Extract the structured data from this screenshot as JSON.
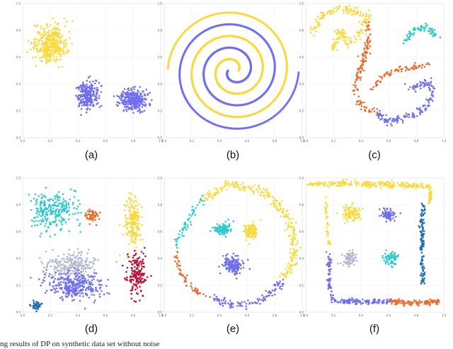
{
  "figure": {
    "caption": "ng results of DP on synthetic data set without noise",
    "colors": {
      "blue": "#6f6ff0",
      "yellow": "#f9d93a",
      "orange": "#ea6a2a",
      "teal": "#2fc9cf",
      "gray": "#b3b8cf",
      "red": "#b8143a",
      "darkblue": "#1f6eb4"
    }
  },
  "chart_data": [
    {
      "type": "scatter",
      "panel_label": "(a)",
      "xlim": [
        0,
        1
      ],
      "ylim": [
        0,
        1
      ],
      "grid": true,
      "x_ticks": [
        "0.0",
        "0.2",
        "0.4",
        "0.6",
        "0.8",
        "1.0"
      ],
      "y_ticks": [
        "0.0",
        "0.2",
        "0.4",
        "0.6",
        "0.8",
        "1.0"
      ],
      "series": [
        {
          "color_key": "yellow",
          "clusters": [
            {
              "shape": "blob",
              "cx": 0.2,
              "cy": 0.7,
              "rx": 0.12,
              "ry": 0.14,
              "n": 360
            }
          ]
        },
        {
          "color_key": "blue",
          "clusters": [
            {
              "shape": "blob",
              "cx": 0.47,
              "cy": 0.32,
              "rx": 0.08,
              "ry": 0.1,
              "n": 240
            },
            {
              "shape": "blob",
              "cx": 0.8,
              "cy": 0.28,
              "rx": 0.1,
              "ry": 0.08,
              "n": 300
            }
          ]
        }
      ]
    },
    {
      "type": "scatter",
      "panel_label": "(b)",
      "xlim": [
        0,
        1
      ],
      "ylim": [
        0,
        1
      ],
      "grid": true,
      "x_ticks": [
        "0.0",
        "0.2",
        "0.4",
        "0.6",
        "0.8",
        "1.0"
      ],
      "y_ticks": [
        "0.0",
        "0.2",
        "0.4",
        "0.6",
        "0.8",
        "1.0"
      ],
      "series": [
        {
          "color_key": "blue",
          "clusters": [
            {
              "shape": "spiral",
              "cx": 0.5,
              "cy": 0.5,
              "r0": 0.04,
              "r1": 0.5,
              "t0": 3.14,
              "t1": 18.85,
              "phase": 0,
              "n": 520
            }
          ]
        },
        {
          "color_key": "yellow",
          "clusters": [
            {
              "shape": "spiral",
              "cx": 0.5,
              "cy": 0.5,
              "r0": 0.04,
              "r1": 0.5,
              "t0": 3.14,
              "t1": 18.85,
              "phase": 3.14,
              "n": 520
            }
          ]
        }
      ]
    },
    {
      "type": "scatter",
      "panel_label": "(c)",
      "xlim": [
        0,
        1
      ],
      "ylim": [
        0,
        1
      ],
      "grid": true,
      "x_ticks": [
        "0.0",
        "0.2",
        "0.4",
        "0.6",
        "0.8",
        "1.0"
      ],
      "y_ticks": [
        "0.0",
        "0.2",
        "0.4",
        "0.6",
        "0.8",
        "1.0"
      ],
      "series": [
        {
          "color_key": "yellow",
          "clusters": [
            {
              "shape": "path",
              "pts": [
                [
                  0.05,
                  0.77
                ],
                [
                  0.12,
                  0.92
                ],
                [
                  0.22,
                  0.96
                ],
                [
                  0.35,
                  0.95
                ],
                [
                  0.45,
                  0.9
                ],
                [
                  0.4,
                  0.78
                ],
                [
                  0.3,
                  0.7
                ],
                [
                  0.25,
                  0.8
                ],
                [
                  0.2,
                  0.66
                ]
              ],
              "spread": 0.025,
              "n": 210
            }
          ]
        },
        {
          "color_key": "orange",
          "clusters": [
            {
              "shape": "path",
              "pts": [
                [
                  0.46,
                  0.85
                ],
                [
                  0.45,
                  0.7
                ],
                [
                  0.41,
                  0.55
                ],
                [
                  0.37,
                  0.45
                ],
                [
                  0.36,
                  0.32
                ],
                [
                  0.42,
                  0.22
                ],
                [
                  0.52,
                  0.2
                ]
              ],
              "spread": 0.02,
              "n": 130
            },
            {
              "shape": "path",
              "pts": [
                [
                  0.48,
                  0.35
                ],
                [
                  0.55,
                  0.45
                ],
                [
                  0.64,
                  0.5
                ],
                [
                  0.76,
                  0.52
                ],
                [
                  0.9,
                  0.55
                ]
              ],
              "spread": 0.018,
              "n": 70
            }
          ]
        },
        {
          "color_key": "blue",
          "clusters": [
            {
              "shape": "path",
              "pts": [
                [
                  0.52,
                  0.18
                ],
                [
                  0.6,
                  0.12
                ],
                [
                  0.72,
                  0.15
                ],
                [
                  0.83,
                  0.2
                ],
                [
                  0.9,
                  0.26
                ],
                [
                  0.92,
                  0.35
                ],
                [
                  0.88,
                  0.42
                ],
                [
                  0.8,
                  0.38
                ],
                [
                  0.72,
                  0.36
                ]
              ],
              "spread": 0.025,
              "n": 170
            }
          ]
        },
        {
          "color_key": "teal",
          "clusters": [
            {
              "shape": "path",
              "pts": [
                [
                  0.73,
                  0.72
                ],
                [
                  0.78,
                  0.8
                ],
                [
                  0.85,
                  0.83
                ],
                [
                  0.92,
                  0.8
                ],
                [
                  0.94,
                  0.74
                ]
              ],
              "spread": 0.02,
              "n": 70
            }
          ]
        }
      ]
    },
    {
      "type": "scatter",
      "panel_label": "(d)",
      "xlim": [
        0,
        1
      ],
      "ylim": [
        0,
        1
      ],
      "grid": true,
      "x_ticks": [
        "0.0",
        "0.2",
        "0.4",
        "0.6",
        "0.8",
        "1.0"
      ],
      "y_ticks": [
        "0.0",
        "0.2",
        "0.4",
        "0.6",
        "0.8",
        "1.0"
      ],
      "series": [
        {
          "color_key": "teal",
          "clusters": [
            {
              "shape": "blob",
              "cx": 0.22,
              "cy": 0.75,
              "rx": 0.17,
              "ry": 0.15,
              "n": 260
            }
          ]
        },
        {
          "color_key": "orange",
          "clusters": [
            {
              "shape": "blob",
              "cx": 0.5,
              "cy": 0.72,
              "rx": 0.05,
              "ry": 0.05,
              "n": 55
            }
          ]
        },
        {
          "color_key": "yellow",
          "clusters": [
            {
              "shape": "blob",
              "cx": 0.8,
              "cy": 0.67,
              "rx": 0.06,
              "ry": 0.18,
              "n": 190
            }
          ]
        },
        {
          "color_key": "gray",
          "clusters": [
            {
              "shape": "blob",
              "cx": 0.35,
              "cy": 0.35,
              "rx": 0.2,
              "ry": 0.09,
              "n": 230
            }
          ]
        },
        {
          "color_key": "blue",
          "clusters": [
            {
              "shape": "blob",
              "cx": 0.38,
              "cy": 0.2,
              "rx": 0.2,
              "ry": 0.1,
              "n": 330
            }
          ]
        },
        {
          "color_key": "red",
          "clusters": [
            {
              "shape": "blob",
              "cx": 0.82,
              "cy": 0.28,
              "rx": 0.07,
              "ry": 0.17,
              "n": 170
            }
          ]
        },
        {
          "color_key": "darkblue",
          "clusters": [
            {
              "shape": "blob",
              "cx": 0.1,
              "cy": 0.05,
              "rx": 0.035,
              "ry": 0.035,
              "n": 45
            }
          ]
        }
      ]
    },
    {
      "type": "scatter",
      "panel_label": "(e)",
      "xlim": [
        0,
        1
      ],
      "ylim": [
        0,
        1
      ],
      "grid": true,
      "x_ticks": [
        "0.0",
        "0.2",
        "0.4",
        "0.6",
        "0.8",
        "1.0"
      ],
      "y_ticks": [
        "0.0",
        "0.2",
        "0.4",
        "0.6",
        "0.8",
        "1.0"
      ],
      "series": [
        {
          "color_key": "yellow",
          "clusters": [
            {
              "shape": "path",
              "pts": [
                [
                  0.3,
                  0.85
                ],
                [
                  0.45,
                  0.95
                ],
                [
                  0.62,
                  0.93
                ],
                [
                  0.78,
                  0.85
                ],
                [
                  0.9,
                  0.7
                ],
                [
                  0.95,
                  0.5
                ],
                [
                  0.92,
                  0.35
                ],
                [
                  0.85,
                  0.25
                ]
              ],
              "spread": 0.03,
              "n": 260
            }
          ]
        },
        {
          "color_key": "blue",
          "clusters": [
            {
              "shape": "path",
              "pts": [
                [
                  0.85,
                  0.22
                ],
                [
                  0.75,
                  0.12
                ],
                [
                  0.62,
                  0.06
                ],
                [
                  0.48,
                  0.06
                ],
                [
                  0.36,
                  0.1
                ]
              ],
              "spread": 0.025,
              "n": 110
            },
            {
              "shape": "blob",
              "cx": 0.5,
              "cy": 0.35,
              "rx": 0.07,
              "ry": 0.07,
              "n": 150
            }
          ]
        },
        {
          "color_key": "teal",
          "clusters": [
            {
              "shape": "path",
              "pts": [
                [
                  0.28,
                  0.85
                ],
                [
                  0.2,
                  0.72
                ],
                [
                  0.12,
                  0.58
                ],
                [
                  0.08,
                  0.5
                ]
              ],
              "spread": 0.025,
              "n": 55
            },
            {
              "shape": "blob",
              "cx": 0.42,
              "cy": 0.62,
              "rx": 0.06,
              "ry": 0.05,
              "n": 110
            }
          ]
        },
        {
          "color_key": "orange",
          "clusters": [
            {
              "shape": "path",
              "pts": [
                [
                  0.08,
                  0.45
                ],
                [
                  0.12,
                  0.3
                ],
                [
                  0.2,
                  0.18
                ],
                [
                  0.32,
                  0.1
                ]
              ],
              "spread": 0.02,
              "n": 60
            }
          ]
        },
        {
          "color_key": "yellow",
          "clusters": [
            {
              "shape": "blob",
              "cx": 0.63,
              "cy": 0.6,
              "rx": 0.05,
              "ry": 0.06,
              "n": 110
            }
          ]
        }
      ]
    },
    {
      "type": "scatter",
      "panel_label": "(f)",
      "xlim": [
        0,
        1
      ],
      "ylim": [
        0,
        1
      ],
      "grid": true,
      "x_ticks": [
        "0.0",
        "0.2",
        "0.4",
        "0.6",
        "0.8",
        "1.0"
      ],
      "y_ticks": [
        "0.0",
        "0.2",
        "0.4",
        "0.6",
        "0.8",
        "1.0"
      ],
      "series": [
        {
          "color_key": "yellow",
          "clusters": [
            {
              "shape": "path",
              "pts": [
                [
                  0.03,
                  0.95
                ],
                [
                  0.3,
                  0.96
                ],
                [
                  0.6,
                  0.95
                ],
                [
                  0.9,
                  0.94
                ]
              ],
              "spread": 0.018,
              "n": 230
            },
            {
              "shape": "path",
              "pts": [
                [
                  0.9,
                  0.94
                ],
                [
                  0.9,
                  0.82
                ]
              ],
              "spread": 0.012,
              "n": 35
            },
            {
              "shape": "path",
              "pts": [
                [
                  0.15,
                  0.86
                ],
                [
                  0.15,
                  0.7
                ],
                [
                  0.17,
                  0.5
                ]
              ],
              "spread": 0.012,
              "n": 35
            },
            {
              "shape": "blob",
              "cx": 0.33,
              "cy": 0.73,
              "rx": 0.07,
              "ry": 0.06,
              "n": 90
            }
          ]
        },
        {
          "color_key": "blue",
          "clusters": [
            {
              "shape": "path",
              "pts": [
                [
                  0.17,
                  0.45
                ],
                [
                  0.17,
                  0.2
                ],
                [
                  0.2,
                  0.1
                ]
              ],
              "spread": 0.012,
              "n": 60
            },
            {
              "shape": "path",
              "pts": [
                [
                  0.2,
                  0.08
                ],
                [
                  0.45,
                  0.08
                ],
                [
                  0.62,
                  0.08
                ]
              ],
              "spread": 0.015,
              "n": 120
            },
            {
              "shape": "blob",
              "cx": 0.6,
              "cy": 0.73,
              "rx": 0.05,
              "ry": 0.05,
              "n": 80
            }
          ]
        },
        {
          "color_key": "darkblue",
          "clusters": [
            {
              "shape": "path",
              "pts": [
                [
                  0.85,
                  0.8
                ],
                [
                  0.84,
                  0.5
                ],
                [
                  0.85,
                  0.2
                ]
              ],
              "spread": 0.015,
              "n": 120
            }
          ]
        },
        {
          "color_key": "gray",
          "clusters": [
            {
              "shape": "blob",
              "cx": 0.32,
              "cy": 0.4,
              "rx": 0.06,
              "ry": 0.06,
              "n": 80
            }
          ]
        },
        {
          "color_key": "teal",
          "clusters": [
            {
              "shape": "blob",
              "cx": 0.62,
              "cy": 0.4,
              "rx": 0.05,
              "ry": 0.05,
              "n": 70
            }
          ]
        },
        {
          "color_key": "orange",
          "clusters": [
            {
              "shape": "path",
              "pts": [
                [
                  0.62,
                  0.08
                ],
                [
                  0.8,
                  0.07
                ],
                [
                  0.97,
                  0.08
                ]
              ],
              "spread": 0.015,
              "n": 110
            }
          ]
        }
      ]
    }
  ]
}
